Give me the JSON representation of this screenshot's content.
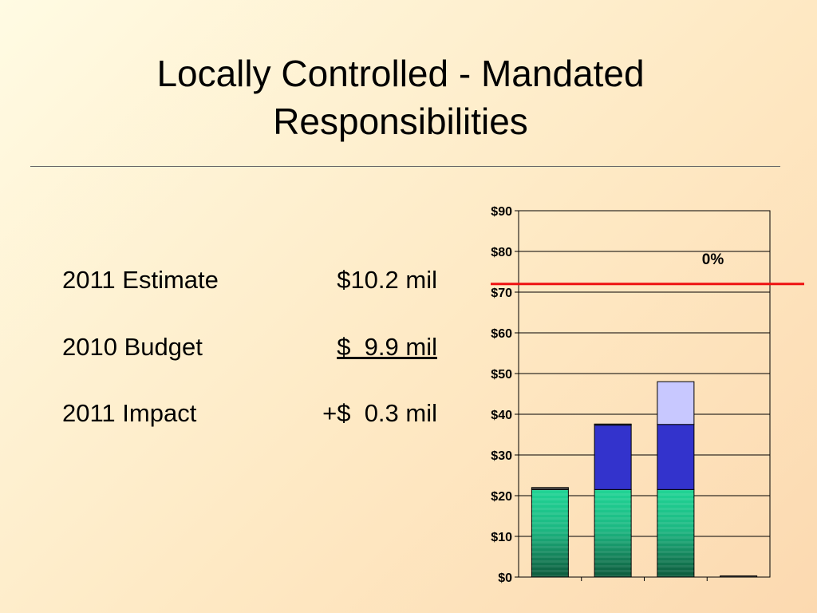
{
  "title_lines": [
    "Locally Controlled - Mandated",
    "Responsibilities"
  ],
  "rows": [
    {
      "label": "2011 Estimate",
      "value": "$10.2 mil"
    },
    {
      "label": "2010 Budget",
      "value": "$  9.9 mil"
    },
    {
      "label": "2011 Impact",
      "value": "+$  0.3 mil"
    }
  ],
  "chart_data": {
    "type": "bar",
    "stacked": true,
    "categories": [
      "",
      "",
      "",
      ""
    ],
    "series": [
      {
        "color": "#1ec88c",
        "values": [
          21.5,
          21.5,
          21.5,
          0
        ]
      },
      {
        "color": "#3333cc",
        "values": [
          0,
          16,
          16,
          0
        ]
      },
      {
        "color": "#c8c8ff",
        "values": [
          0,
          0,
          10.5,
          0
        ]
      }
    ],
    "caps": [
      22,
      37.6,
      48,
      0.3
    ],
    "ylim": [
      0,
      90
    ],
    "yticks": [
      "$0",
      "$10",
      "$20",
      "$30",
      "$40",
      "$50",
      "$60",
      "$70",
      "$80",
      "$90"
    ],
    "grid": true,
    "annotation": {
      "text": "0%",
      "y": 78
    },
    "reference_line": {
      "y": 72,
      "color": "#ee1111"
    },
    "xlabel": "",
    "ylabel": ""
  }
}
